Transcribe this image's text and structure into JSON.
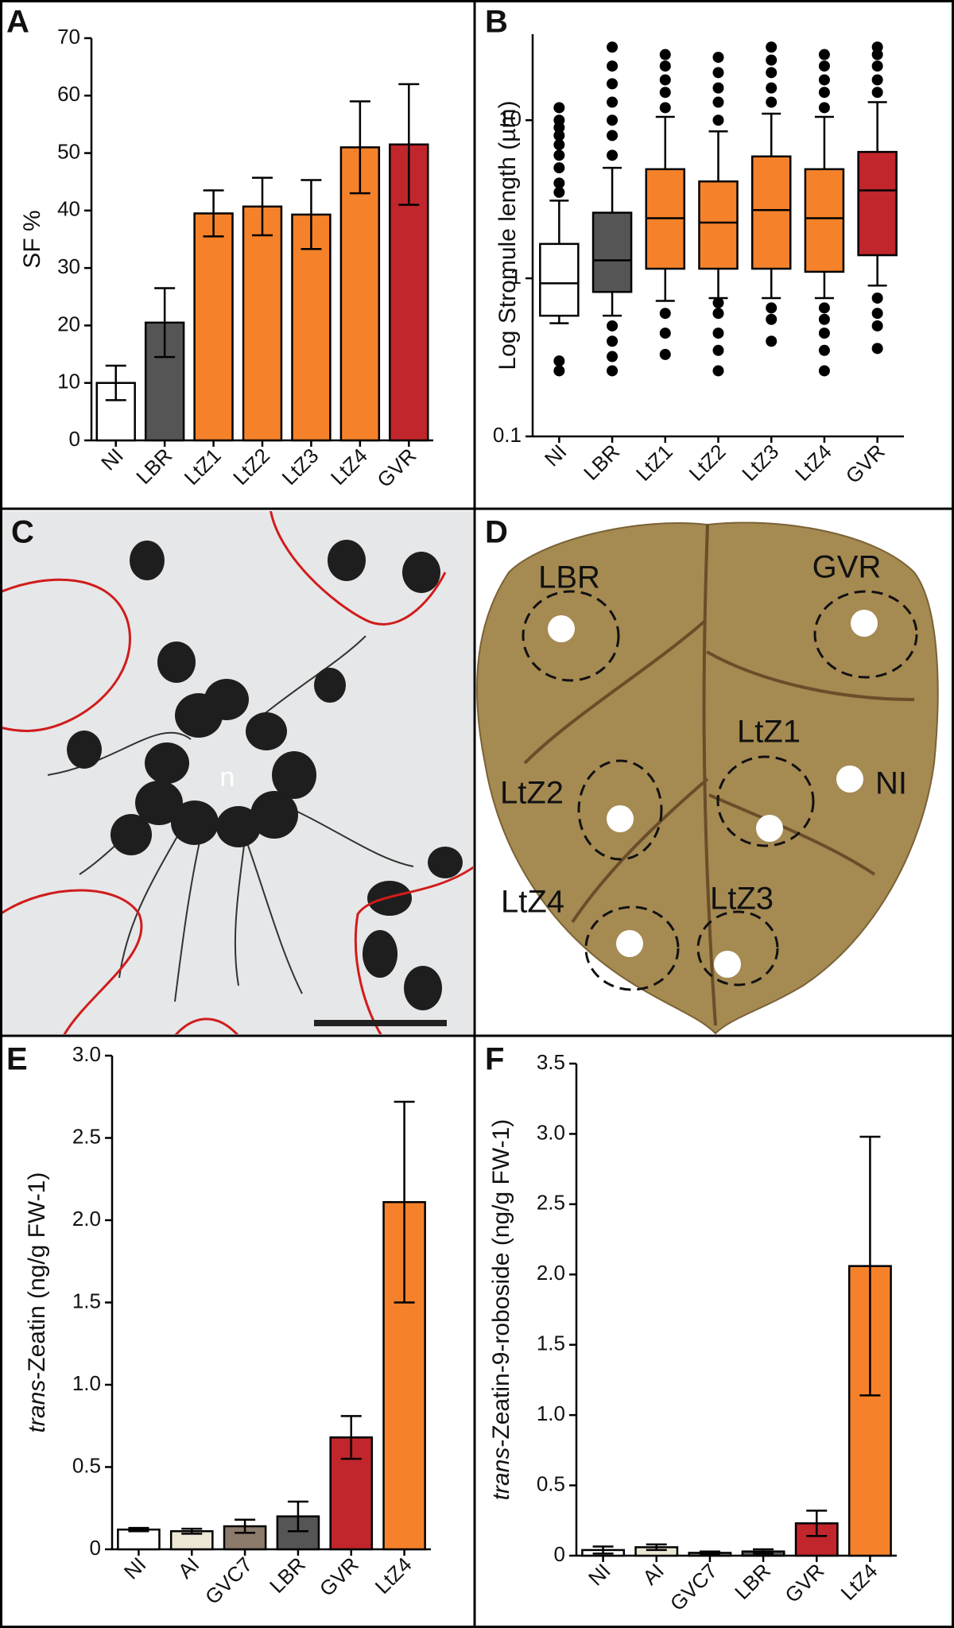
{
  "chart_data": [
    {
      "type": "bar",
      "panel": "A",
      "ylabel": "SF %",
      "categories": [
        "NI",
        "LBR",
        "LtZ1",
        "LtZ2",
        "LtZ3",
        "LtZ4",
        "GVR"
      ],
      "values": [
        10,
        20.5,
        39.5,
        40.7,
        39.3,
        51,
        51.5
      ],
      "errors": [
        3,
        6,
        4,
        5,
        6,
        8,
        10.5
      ],
      "colors": [
        "#ffffff",
        "#555555",
        "#f5822a",
        "#f5822a",
        "#f5822a",
        "#f5822a",
        "#c0262b"
      ],
      "ylim": [
        0,
        70
      ],
      "yticks": [
        0,
        10,
        20,
        30,
        40,
        50,
        60,
        70
      ]
    },
    {
      "type": "box",
      "panel": "B",
      "ylabel": "Log Stromule length (µm)",
      "log_scale": true,
      "categories": [
        "NI",
        "LBR",
        "LtZ1",
        "LtZ2",
        "LtZ3",
        "LtZ4",
        "GVR"
      ],
      "boxes": [
        {
          "low": 0.52,
          "q1": 0.58,
          "median": 0.93,
          "q3": 1.65,
          "high": 3.1,
          "outliers": [
            0.26,
            0.3,
            3.5,
            4,
            5,
            6,
            7,
            8,
            9,
            10,
            12
          ]
        },
        {
          "low": 0.58,
          "q1": 0.82,
          "median": 1.3,
          "q3": 2.6,
          "high": 5,
          "outliers": [
            0.26,
            0.32,
            0.4,
            0.5,
            6,
            8,
            10,
            13,
            17,
            22,
            29
          ]
        },
        {
          "low": 0.72,
          "q1": 1.15,
          "median": 2.4,
          "q3": 4.9,
          "high": 10.5,
          "outliers": [
            0.33,
            0.45,
            0.6,
            12,
            15,
            18,
            22,
            26
          ]
        },
        {
          "low": 0.75,
          "q1": 1.15,
          "median": 2.25,
          "q3": 4.1,
          "high": 8.5,
          "outliers": [
            0.26,
            0.35,
            0.45,
            0.6,
            0.7,
            10,
            13,
            16,
            20,
            25
          ]
        },
        {
          "low": 0.75,
          "q1": 1.15,
          "median": 2.7,
          "q3": 5.9,
          "high": 11,
          "outliers": [
            0.4,
            0.55,
            0.65,
            13,
            16,
            20,
            24,
            29
          ]
        },
        {
          "low": 0.75,
          "q1": 1.1,
          "median": 2.4,
          "q3": 4.9,
          "high": 10.5,
          "outliers": [
            0.26,
            0.35,
            0.45,
            0.55,
            0.65,
            12,
            15,
            18,
            22,
            26
          ]
        },
        {
          "low": 0.9,
          "q1": 1.4,
          "median": 3.6,
          "q3": 6.3,
          "high": 13,
          "outliers": [
            0.36,
            0.5,
            0.6,
            0.75,
            15,
            18,
            22,
            26,
            29
          ]
        }
      ],
      "colors": [
        "#ffffff",
        "#555555",
        "#f5822a",
        "#f5822a",
        "#f5822a",
        "#f5822a",
        "#c0262b"
      ],
      "ylim": [
        0.1,
        35
      ],
      "yticks": [
        0.1,
        1,
        10
      ]
    },
    {
      "type": "bar",
      "panel": "E",
      "ylabel_italic": "trans",
      "ylabel": "-Zeatin (ng/g FW-1)",
      "categories": [
        "NI",
        "AI",
        "GVC7",
        "LBR",
        "GVR",
        "LtZ4"
      ],
      "values": [
        0.12,
        0.11,
        0.14,
        0.2,
        0.68,
        2.11
      ],
      "errors": [
        0.01,
        0.015,
        0.04,
        0.09,
        0.13,
        0.61
      ],
      "colors": [
        "#ffffff",
        "#ece6d4",
        "#8c7b6b",
        "#555555",
        "#c0262b",
        "#f5822a"
      ],
      "ylim": [
        0,
        3
      ],
      "yticks": [
        0,
        0.5,
        {
          "value": 1,
          "label": "1.0"
        },
        1.5,
        {
          "value": 2,
          "label": "2.0"
        },
        2.5,
        {
          "value": 3,
          "label": "3.0"
        }
      ]
    },
    {
      "type": "bar",
      "panel": "F",
      "ylabel_italic": "trans",
      "ylabel": "-Zeatin-9-roboside (ng/g FW-1)",
      "categories": [
        "NI",
        "AI",
        "GVC7",
        "LBR",
        "GVR",
        "LtZ4"
      ],
      "values": [
        0.04,
        0.06,
        0.02,
        0.03,
        0.23,
        2.06
      ],
      "errors": [
        0.025,
        0.02,
        0.01,
        0.015,
        0.09,
        0.92
      ],
      "colors": [
        "#ffffff",
        "#ece6d4",
        "#8c7b6b",
        "#555555",
        "#c0262b",
        "#f5822a"
      ],
      "ylim": [
        0,
        3.5
      ],
      "yticks": [
        0,
        0.5,
        {
          "value": 1,
          "label": "1.0"
        },
        1.5,
        {
          "value": 2,
          "label": "2.0"
        },
        2.5,
        {
          "value": 3,
          "label": "3.0"
        },
        3.5
      ]
    }
  ],
  "micrograph": {
    "panel": "C",
    "label": "n"
  },
  "leaf": {
    "panel": "D",
    "labels": [
      "LBR",
      "GVR",
      "LtZ1",
      "NI",
      "LtZ2",
      "LtZ4",
      "LtZ3"
    ]
  }
}
